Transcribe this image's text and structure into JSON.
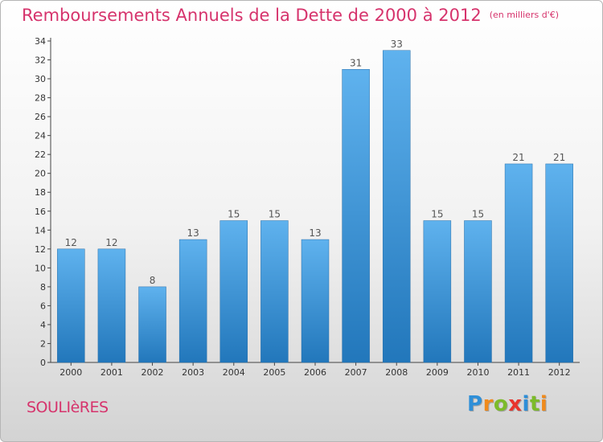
{
  "page": {
    "title": "Remboursements Annuels de la Dette de 2000 à 2012",
    "unit": "(en milliers d'€)",
    "commune": "SOULIèRES",
    "brand": {
      "letters": [
        "P",
        "r",
        "o",
        "x",
        "i",
        "t",
        "i"
      ],
      "colors": [
        "#2e8fd8",
        "#f08a1c",
        "#7cbb2a",
        "#e8342d",
        "#2e8fd8",
        "#7cbb2a",
        "#f08a1c"
      ]
    }
  },
  "chart_data": {
    "type": "bar",
    "categories": [
      "2000",
      "2001",
      "2002",
      "2003",
      "2004",
      "2005",
      "2006",
      "2007",
      "2008",
      "2009",
      "2010",
      "2011",
      "2012"
    ],
    "values": [
      12,
      12,
      8,
      13,
      15,
      15,
      13,
      31,
      33,
      15,
      15,
      21,
      21
    ],
    "ylim": [
      0,
      34
    ],
    "ytick_step": 2,
    "grid": false,
    "bar_color": "#3e9ae0",
    "label_color": "#555555"
  }
}
